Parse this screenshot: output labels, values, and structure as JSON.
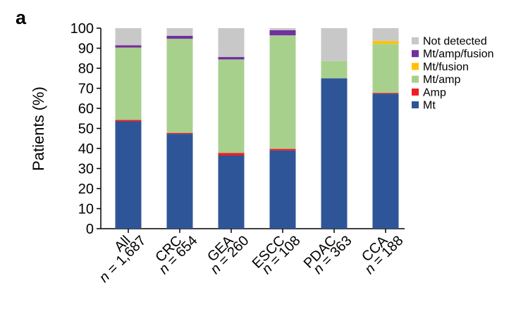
{
  "panel_label": "a",
  "chart_data": {
    "type": "bar",
    "stacked": true,
    "title": "",
    "xlabel": "",
    "ylabel": "Patients (%)",
    "ylim": [
      0,
      100
    ],
    "yticks": [
      0,
      10,
      20,
      30,
      40,
      50,
      60,
      70,
      80,
      90,
      100
    ],
    "grid": false,
    "legend_position": "right",
    "categories": [
      {
        "name": "All",
        "n_prefix": "n",
        "n_value": " = 1,687"
      },
      {
        "name": "CRC",
        "n_prefix": "n",
        "n_value": " = 654"
      },
      {
        "name": "GEA",
        "n_prefix": "n",
        "n_value": " = 260"
      },
      {
        "name": "ESCC",
        "n_prefix": "n",
        "n_value": " = 108"
      },
      {
        "name": "PDAC",
        "n_prefix": "n",
        "n_value": " = 363"
      },
      {
        "name": "CCA",
        "n_prefix": "n",
        "n_value": " = 188"
      }
    ],
    "series": [
      {
        "name": "Mt",
        "color": "#2e5597",
        "values": [
          53.5,
          47.3,
          36.5,
          39.0,
          75.0,
          67.3
        ]
      },
      {
        "name": "Amp",
        "color": "#ee1c24",
        "values": [
          0.7,
          0.5,
          1.3,
          0.8,
          0.0,
          0.4
        ]
      },
      {
        "name": "Mt/amp",
        "color": "#a8d08d",
        "values": [
          36.0,
          46.9,
          46.6,
          56.6,
          8.6,
          24.5
        ]
      },
      {
        "name": "Mt/fusion",
        "color": "#ffc000",
        "values": [
          0.1,
          0.0,
          0.0,
          0.0,
          0.0,
          1.4
        ]
      },
      {
        "name": "Mt/amp/fusion",
        "color": "#7030a0",
        "values": [
          1.2,
          1.5,
          1.2,
          2.6,
          0.0,
          0.0
        ]
      },
      {
        "name": "Not detected",
        "color": "#c8c8c8",
        "values": [
          8.5,
          3.8,
          14.4,
          1.0,
          16.4,
          6.4
        ]
      }
    ]
  }
}
